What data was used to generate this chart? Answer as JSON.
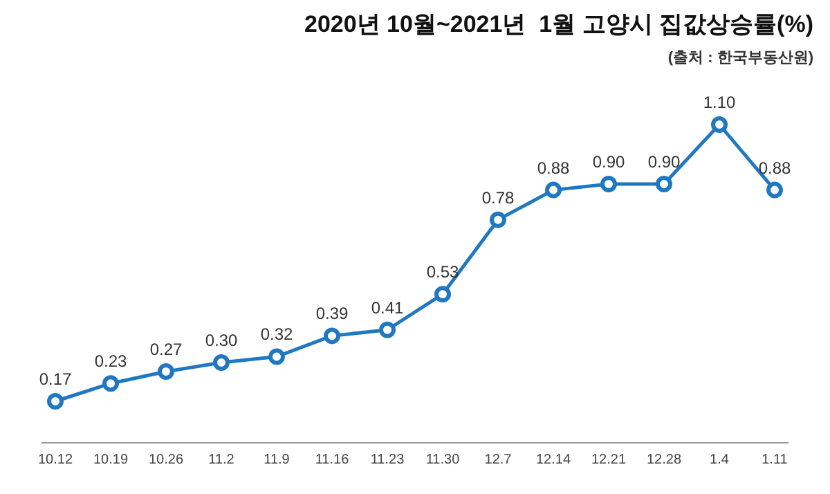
{
  "chart_data": {
    "type": "line",
    "title": "2020년 10월~2021년  1월 고양시 집값상승률(%)",
    "annotations": [
      "(출처 : 한국부동산원)"
    ],
    "categories": [
      "10.12",
      "10.19",
      "10.26",
      "11.2",
      "11.9",
      "11.16",
      "11.23",
      "11.30",
      "12.7",
      "12.14",
      "12.21",
      "12.28",
      "1.4",
      "1.11"
    ],
    "series": [
      {
        "color": "#1f78c1",
        "values": [
          0.17,
          0.23,
          0.27,
          0.3,
          0.32,
          0.39,
          0.41,
          0.53,
          0.78,
          0.88,
          0.9,
          0.9,
          1.1,
          0.88
        ],
        "value_labels": [
          "0.17",
          "0.23",
          "0.27",
          "0.30",
          "0.32",
          "0.39",
          "0.41",
          "0.53",
          "0.78",
          "0.88",
          "0.90",
          "0.90",
          "1.10",
          "0.88"
        ]
      }
    ],
    "marker": "circle",
    "grid": false,
    "legend": false
  }
}
